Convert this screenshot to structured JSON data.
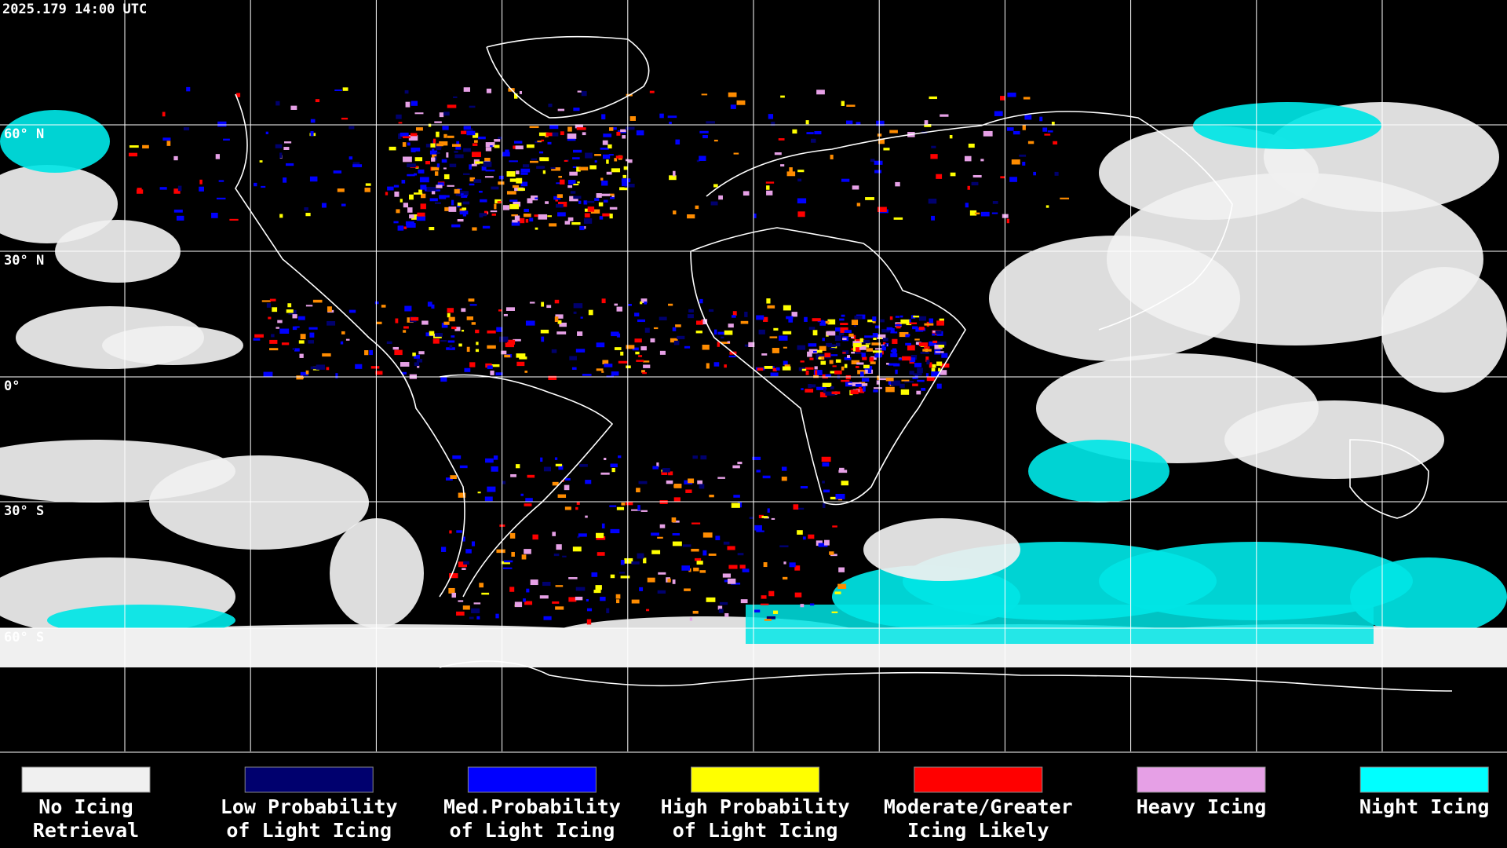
{
  "header": {
    "timestamp": "2025.179 14:00 UTC"
  },
  "latitude_labels": [
    "60° N",
    "30° N",
    "0°",
    "30° S",
    "60° S"
  ],
  "legend": [
    {
      "lines": [
        "No Icing",
        "Retrieval"
      ],
      "color": "#f0f0f0"
    },
    {
      "lines": [
        "Low Probability",
        "of Light Icing"
      ],
      "color": "#00006e"
    },
    {
      "lines": [
        "Med.Probability",
        "of Light Icing"
      ],
      "color": "#0000ff"
    },
    {
      "lines": [
        "High Probability",
        "of Light Icing"
      ],
      "color": "#ffff00"
    },
    {
      "lines": [
        "Moderate/Greater",
        "Icing Likely"
      ],
      "color": "#ff0000"
    },
    {
      "lines": [
        "Heavy Icing"
      ],
      "color": "#e6a0e6"
    },
    {
      "lines": [
        "Night Icing"
      ],
      "color": "#00ffff"
    }
  ]
}
